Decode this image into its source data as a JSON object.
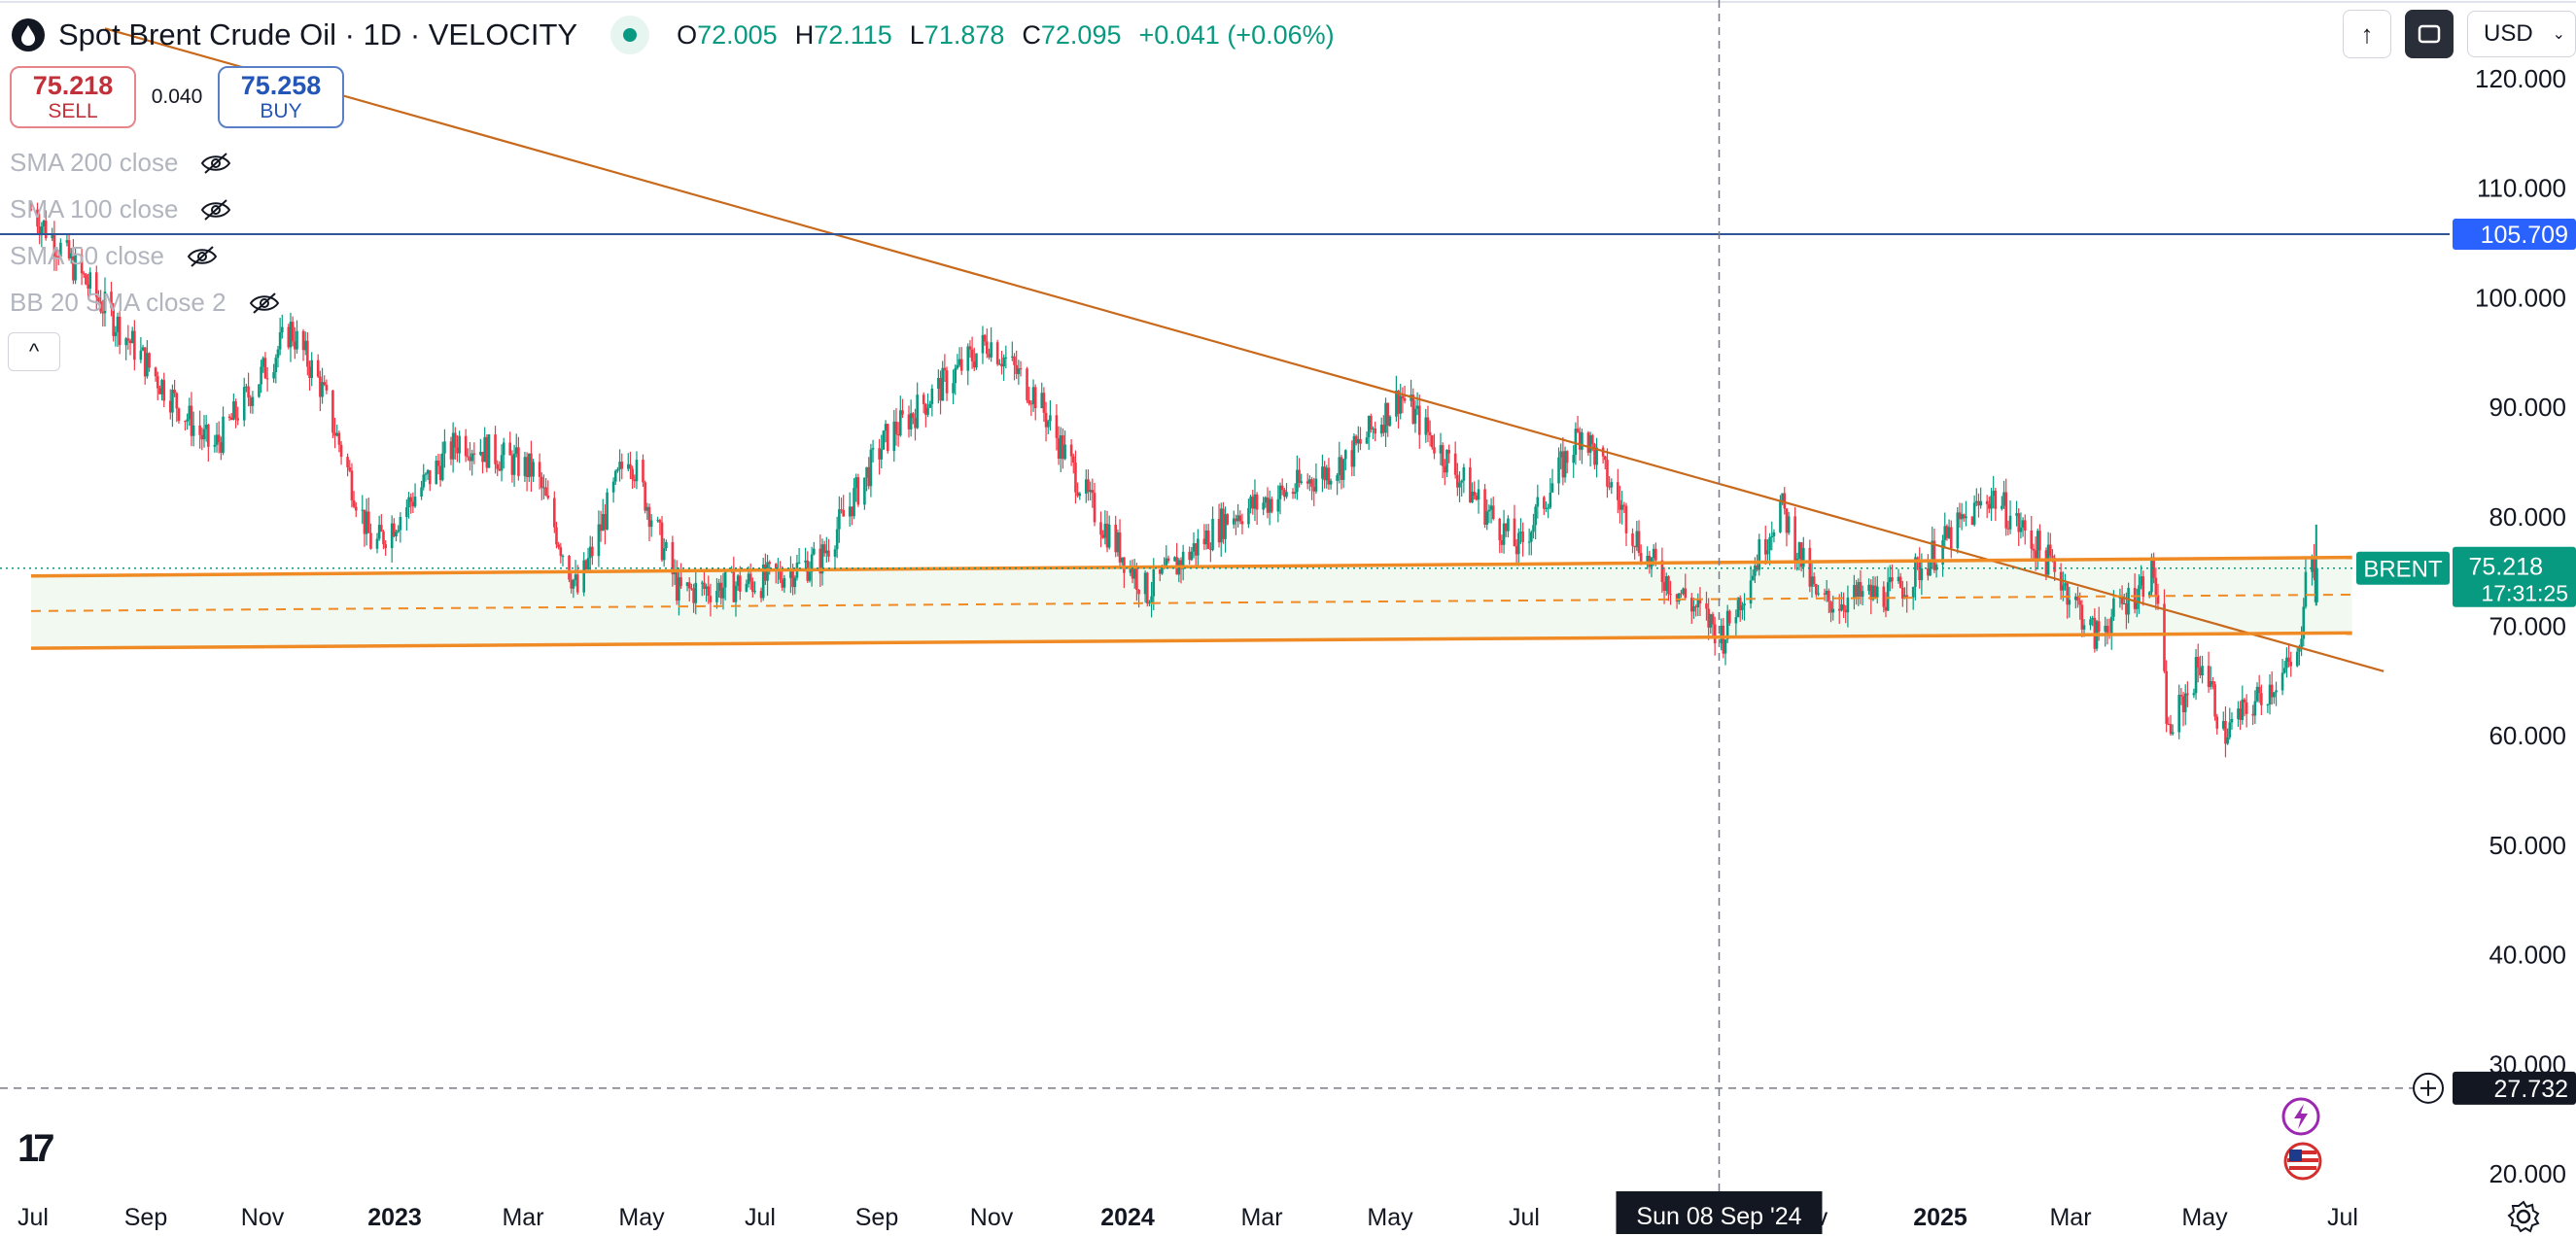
{
  "header": {
    "symbol_title": "Spot Brent Crude Oil · 1D · VELOCITY",
    "ohlc": {
      "open_label": "O",
      "open": "72.005",
      "high_label": "H",
      "high": "72.115",
      "low_label": "L",
      "low": "71.878",
      "close_label": "C",
      "close": "72.095",
      "change": "+0.041 (+0.06%)"
    },
    "currency": "USD",
    "icons": [
      "oil-drop-icon",
      "market-open-dot-icon",
      "arrow-up-icon",
      "fullscreen-icon",
      "chevron-down-icon"
    ]
  },
  "trade": {
    "sell_price": "75.218",
    "sell_label": "SELL",
    "spread": "0.040",
    "buy_price": "75.258",
    "buy_label": "BUY"
  },
  "indicators": [
    {
      "label": "SMA 200 close",
      "visible": false
    },
    {
      "label": "SMA 100 close",
      "visible": false
    },
    {
      "label": "SMA 50 close",
      "visible": false
    },
    {
      "label": "BB 20 SMA close 2",
      "visible": false
    }
  ],
  "price_axis": {
    "ticks": [
      "120.000",
      "110.000",
      "100.000",
      "90.000",
      "80.000",
      "70.000",
      "60.000",
      "50.000",
      "40.000",
      "30.000",
      "20.000"
    ]
  },
  "badges": {
    "horizontal_line_price": "105.709",
    "symbol": "BRENT",
    "last_price": "75.218",
    "countdown": "17:31:25",
    "crosshair_price": "27.732",
    "crosshair_date": "Sun 08 Sep '24"
  },
  "time_axis": {
    "labels": [
      {
        "text": "Jul",
        "bold": false
      },
      {
        "text": "Sep",
        "bold": false
      },
      {
        "text": "Nov",
        "bold": false
      },
      {
        "text": "2023",
        "bold": true
      },
      {
        "text": "Mar",
        "bold": false
      },
      {
        "text": "May",
        "bold": false
      },
      {
        "text": "Jul",
        "bold": false
      },
      {
        "text": "Sep",
        "bold": false
      },
      {
        "text": "Nov",
        "bold": false
      },
      {
        "text": "2024",
        "bold": true
      },
      {
        "text": "Mar",
        "bold": false
      },
      {
        "text": "May",
        "bold": false
      },
      {
        "text": "Jul",
        "bold": false
      },
      {
        "text": "Nov",
        "bold": false
      },
      {
        "text": "2025",
        "bold": true
      },
      {
        "text": "Mar",
        "bold": false
      },
      {
        "text": "May",
        "bold": false
      },
      {
        "text": "Jul",
        "bold": false
      }
    ]
  },
  "colors": {
    "up": "#089981",
    "down": "#f23645",
    "trendline": "#c8691c",
    "channel": "#f08a24",
    "hline": "#2f5597",
    "price_badge": "#2962ff"
  },
  "chart_data": {
    "type": "candlestick",
    "symbol": "BRENT",
    "y_range": [
      20,
      125
    ],
    "x_range": [
      "2022-07-01",
      "2025-07-20"
    ],
    "last_close": 75.218,
    "anchors": [
      {
        "date": "2022-07-01",
        "price": 108
      },
      {
        "date": "2022-08-01",
        "price": 100
      },
      {
        "date": "2022-09-01",
        "price": 92
      },
      {
        "date": "2022-09-25",
        "price": 86
      },
      {
        "date": "2022-11-01",
        "price": 97
      },
      {
        "date": "2022-11-15",
        "price": 92
      },
      {
        "date": "2022-12-10",
        "price": 77
      },
      {
        "date": "2023-01-20",
        "price": 87
      },
      {
        "date": "2023-02-25",
        "price": 84
      },
      {
        "date": "2023-03-17",
        "price": 73
      },
      {
        "date": "2023-04-10",
        "price": 86
      },
      {
        "date": "2023-05-04",
        "price": 73
      },
      {
        "date": "2023-06-12",
        "price": 74
      },
      {
        "date": "2023-07-10",
        "price": 76
      },
      {
        "date": "2023-08-10",
        "price": 87
      },
      {
        "date": "2023-09-28",
        "price": 96
      },
      {
        "date": "2023-10-20",
        "price": 91
      },
      {
        "date": "2023-11-15",
        "price": 81
      },
      {
        "date": "2023-12-12",
        "price": 73
      },
      {
        "date": "2024-01-20",
        "price": 80
      },
      {
        "date": "2024-02-15",
        "price": 82
      },
      {
        "date": "2024-03-15",
        "price": 85
      },
      {
        "date": "2024-04-10",
        "price": 91
      },
      {
        "date": "2024-05-10",
        "price": 83
      },
      {
        "date": "2024-06-05",
        "price": 77
      },
      {
        "date": "2024-07-05",
        "price": 88
      },
      {
        "date": "2024-08-05",
        "price": 76
      },
      {
        "date": "2024-09-10",
        "price": 69
      },
      {
        "date": "2024-10-07",
        "price": 81
      },
      {
        "date": "2024-10-25",
        "price": 72
      },
      {
        "date": "2024-12-01",
        "price": 73
      },
      {
        "date": "2025-01-15",
        "price": 82
      },
      {
        "date": "2025-02-15",
        "price": 75
      },
      {
        "date": "2025-03-05",
        "price": 69
      },
      {
        "date": "2025-04-02",
        "price": 75
      },
      {
        "date": "2025-04-09",
        "price": 60
      },
      {
        "date": "2025-04-25",
        "price": 67
      },
      {
        "date": "2025-05-05",
        "price": 60
      },
      {
        "date": "2025-05-25",
        "price": 64
      },
      {
        "date": "2025-06-10",
        "price": 67
      },
      {
        "date": "2025-06-13",
        "price": 76
      },
      {
        "date": "2025-06-18",
        "price": 75.218
      }
    ],
    "lines": [
      {
        "name": "descending-trendline",
        "from": {
          "date": "2022-08-05",
          "price": 124.5
        },
        "to": {
          "date": "2025-07-20",
          "price": 65.8
        }
      },
      {
        "name": "channel-upper",
        "from": {
          "date": "2022-07-01",
          "price": 74.5
        },
        "to": {
          "date": "2025-07-05",
          "price": 76.2
        }
      },
      {
        "name": "channel-mid",
        "from": {
          "date": "2022-07-01",
          "price": 71.3
        },
        "to": {
          "date": "2025-07-05",
          "price": 72.8
        }
      },
      {
        "name": "channel-lower",
        "from": {
          "date": "2022-07-01",
          "price": 67.9
        },
        "to": {
          "date": "2025-07-05",
          "price": 69.3
        }
      },
      {
        "name": "horizontal-line",
        "price": 105.709
      },
      {
        "name": "crosshair",
        "date": "2024-09-08",
        "price": 27.732
      }
    ]
  }
}
